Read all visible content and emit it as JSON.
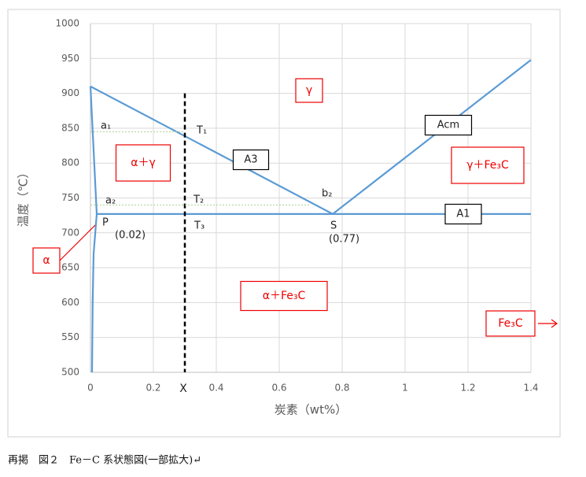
{
  "chart_data": {
    "type": "line",
    "xlabel": "炭素（wt%）",
    "ylabel": "温度（℃）",
    "xlim": [
      0,
      1.4
    ],
    "xticks": [
      0,
      0.2,
      0.4,
      0.6,
      0.8,
      1,
      1.2,
      1.4
    ],
    "ylim": [
      500,
      1000
    ],
    "yticks": [
      500,
      550,
      600,
      650,
      700,
      750,
      800,
      850,
      900,
      950,
      1000
    ],
    "grid": true,
    "series": [
      {
        "x": [
          0,
          0.77
        ],
        "y": [
          910,
          727
        ],
        "color": "#5b9bd5"
      },
      {
        "x": [
          0.77,
          1.4
        ],
        "y": [
          727,
          948
        ],
        "color": "#5b9bd5"
      },
      {
        "x": [
          0.02,
          1.4
        ],
        "y": [
          727,
          727
        ],
        "color": "#5b9bd5"
      },
      {
        "x": [
          0,
          0.02,
          0.01,
          0.007,
          0.005
        ],
        "y": [
          910,
          727,
          670,
          600,
          500
        ],
        "color": "#5b9bd5"
      },
      {
        "x": [
          0.3,
          0.3
        ],
        "y": [
          900,
          500
        ],
        "color": "#000000",
        "dashed": true
      },
      {
        "x": [
          0,
          0.3
        ],
        "y": [
          845,
          845
        ],
        "color": "#a9d18e",
        "dotted": true
      },
      {
        "x": [
          0,
          0.7
        ],
        "y": [
          740,
          740
        ],
        "color": "#a9d18e",
        "dotted": true
      }
    ],
    "annotations": [
      "γ",
      "α＋γ",
      "γ＋Fe₃C",
      "α＋Fe₃C",
      "α",
      "Fe₃C",
      "A3",
      "Acm",
      "A1",
      "a₁",
      "T₁",
      "a₂",
      "T₂",
      "b₂",
      "T₃",
      "P",
      "(0.02)",
      "S",
      "(0.77)",
      "X"
    ]
  },
  "caption": "再掲　図２　Fe－C 系状態図(一部拡大)↵"
}
